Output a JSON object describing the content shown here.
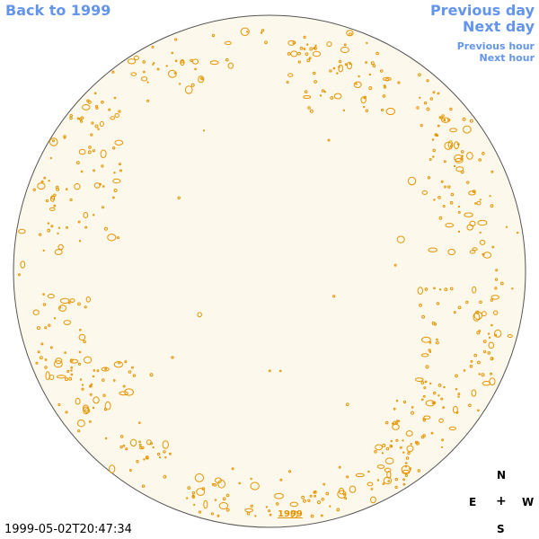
{
  "nav": {
    "back_label": "Back to 1999",
    "prev_day_label": "Previous day",
    "next_day_label": "Next day",
    "prev_hour_label": "Previous hour",
    "next_hour_label": "Next hour"
  },
  "year_link": "1999",
  "timestamp": "1999-05-02T20:47:34",
  "compass": {
    "north": "N",
    "east": "E",
    "center": "+",
    "west": "W",
    "south": "S"
  },
  "colors": {
    "disk_fill": "#fdf8ec",
    "disk_outline": "#555555",
    "contour": "#e69500",
    "link": "#6495ed"
  }
}
